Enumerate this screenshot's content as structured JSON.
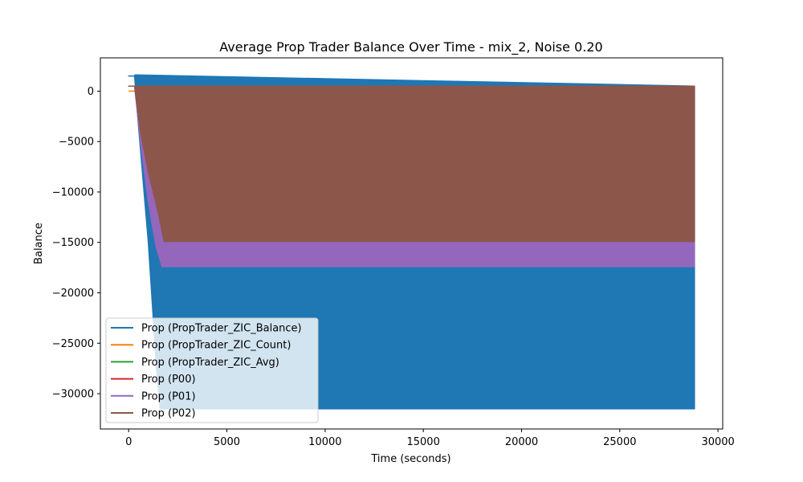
{
  "chart_data": {
    "type": "area",
    "title": "Average Prop Trader Balance Over Time - mix_2, Noise 0.20",
    "xlabel": "Time (seconds)",
    "ylabel": "Balance",
    "xlim": [
      -1440,
      30240
    ],
    "ylim": [
      -33500,
      3300
    ],
    "xticks": [
      0,
      5000,
      10000,
      15000,
      20000,
      25000,
      30000
    ],
    "yticks": [
      0,
      -5000,
      -10000,
      -15000,
      -20000,
      -25000,
      -30000
    ],
    "grid": false,
    "legend_position": "lower left",
    "series": [
      {
        "name": "Prop (PropTrader_ZIC_Balance)",
        "color": "#1f77b4",
        "style": "oscillating_band",
        "upper": [
          [
            0,
            1500
          ],
          [
            300,
            1500
          ],
          [
            320,
            1600
          ],
          [
            28800,
            500
          ]
        ],
        "lower": [
          [
            0,
            1500
          ],
          [
            300,
            1500
          ],
          [
            500,
            -3500
          ],
          [
            1000,
            -15000
          ],
          [
            1400,
            -27000
          ],
          [
            1600,
            -31500
          ],
          [
            28800,
            -31500
          ]
        ]
      },
      {
        "name": "Prop (PropTrader_ZIC_Count)",
        "color": "#ff7f0e",
        "style": "line",
        "points": [
          [
            0,
            0
          ],
          [
            300,
            0
          ]
        ]
      },
      {
        "name": "Prop (PropTrader_ZIC_Avg)",
        "color": "#2ca02c",
        "style": "line",
        "points": []
      },
      {
        "name": "Prop (P00)",
        "color": "#d62728",
        "style": "line",
        "points": []
      },
      {
        "name": "Prop (P01)",
        "color": "#9467bd",
        "style": "oscillating_band",
        "upper": [
          [
            300,
            500
          ],
          [
            28800,
            500
          ]
        ],
        "lower": [
          [
            300,
            500
          ],
          [
            600,
            -5000
          ],
          [
            1000,
            -11000
          ],
          [
            1400,
            -15500
          ],
          [
            1700,
            -17400
          ],
          [
            28800,
            -17400
          ]
        ]
      },
      {
        "name": "Prop (P02)",
        "color": "#8c564b",
        "style": "oscillating_band",
        "upper": [
          [
            0,
            500
          ],
          [
            28800,
            500
          ]
        ],
        "lower": [
          [
            0,
            500
          ],
          [
            300,
            500
          ],
          [
            600,
            -4000
          ],
          [
            1000,
            -8000
          ],
          [
            1500,
            -12000
          ],
          [
            1800,
            -14900
          ],
          [
            28800,
            -14900
          ]
        ]
      }
    ]
  }
}
